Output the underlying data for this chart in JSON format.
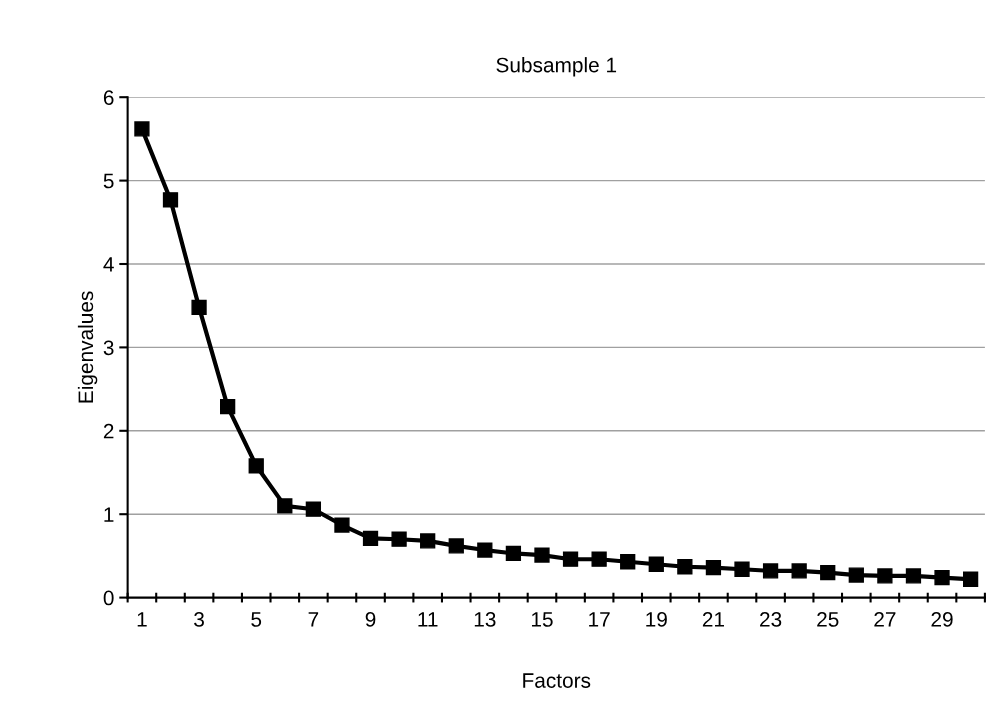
{
  "chart_data": {
    "type": "line",
    "title": "Subsample 1",
    "xlabel": "Factors",
    "ylabel": "Eigenvalues",
    "categories": [
      "1",
      null,
      "3",
      null,
      "5",
      null,
      "7",
      null,
      "9",
      null,
      "11",
      null,
      "13",
      null,
      "15",
      null,
      "17",
      null,
      "19",
      null,
      "21",
      null,
      "23",
      null,
      "25",
      null,
      "27",
      null,
      "29",
      null
    ],
    "series": [
      {
        "color": "#000000",
        "values": [
          5.62,
          4.77,
          3.48,
          2.29,
          1.58,
          1.1,
          1.06,
          0.87,
          0.71,
          0.7,
          0.68,
          0.62,
          0.57,
          0.53,
          0.51,
          0.46,
          0.46,
          0.43,
          0.4,
          0.37,
          0.36,
          0.34,
          0.32,
          0.32,
          0.3,
          0.27,
          0.26,
          0.26,
          0.24,
          0.22
        ]
      }
    ],
    "ylim": [
      0,
      6
    ],
    "yticks": [
      0,
      1,
      2,
      3,
      4,
      5,
      6
    ],
    "grid": "y",
    "marker": "square",
    "line_style": "solid"
  }
}
